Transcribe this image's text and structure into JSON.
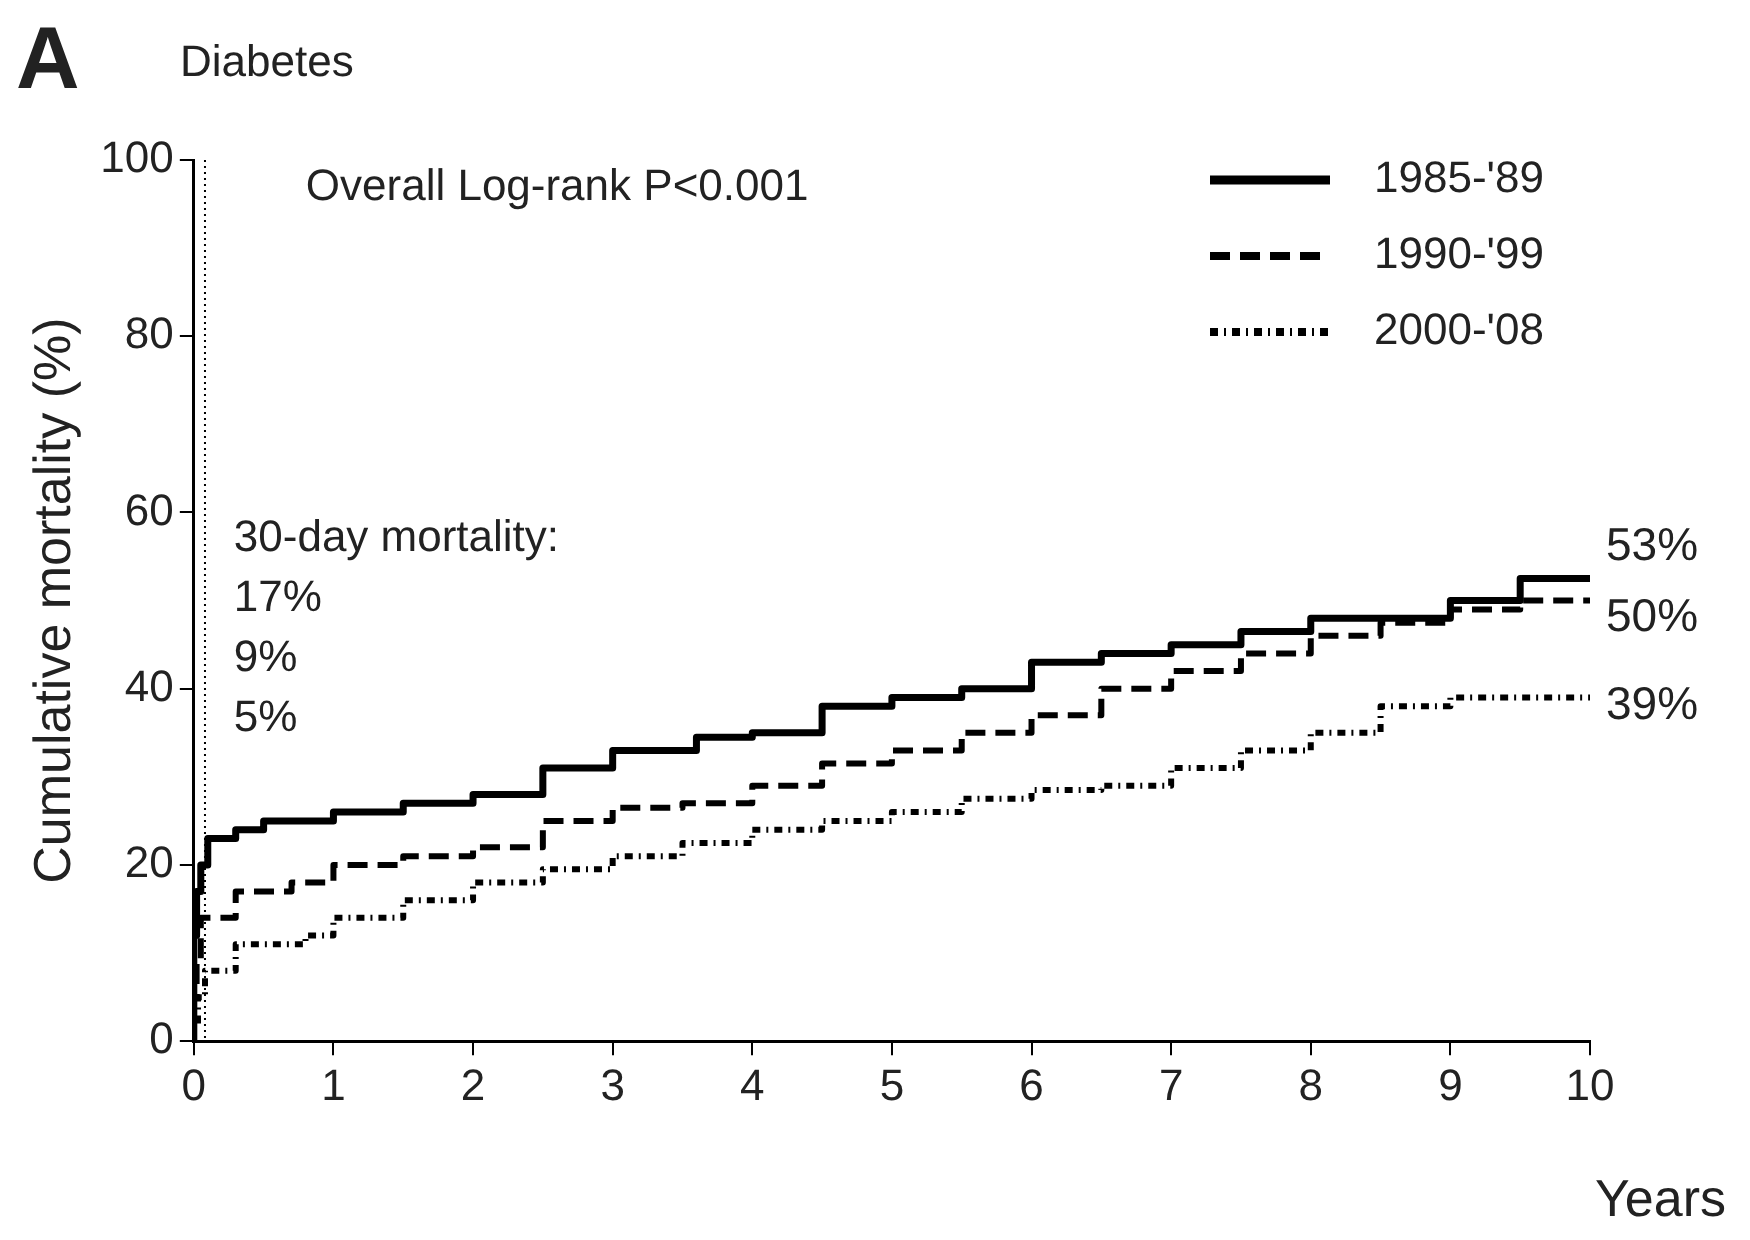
{
  "chart_data": {
    "type": "step",
    "title": "Diabetes",
    "ylabel": "Cumulative mortality (%)",
    "xlabel": "Years",
    "xlim": [
      0,
      10
    ],
    "xticks": [
      0,
      1,
      2,
      3,
      4,
      5,
      6,
      7,
      8,
      9,
      10
    ],
    "ylim": [
      0,
      100
    ],
    "yticks": [
      0,
      20,
      40,
      60,
      80,
      100
    ],
    "grid": false,
    "legend": "top right",
    "marker": "none",
    "ref_lines": [
      {
        "axis": "x",
        "value": 0.08,
        "line_style": "dotted",
        "color": "#000000"
      }
    ],
    "annotations": [
      "A",
      "Overall Log-rank P<0.001",
      "30-day mortality:\n17%\n9%\n5%",
      "53%",
      "50%",
      "39%"
    ],
    "series": [
      {
        "name": "1985-'89",
        "color": "#000000",
        "line_style": "solid",
        "x": [
          0,
          0.02,
          0.05,
          0.1,
          0.3,
          0.5,
          1,
          1.5,
          2,
          2.5,
          3,
          3.6,
          4,
          4.5,
          5,
          5.5,
          6,
          6.5,
          7,
          7.5,
          8,
          8.5,
          9,
          9.5,
          10
        ],
        "values": [
          0,
          12,
          17,
          20,
          23,
          24,
          25,
          26,
          27,
          28,
          31,
          33,
          34.5,
          35,
          38,
          39,
          40,
          43,
          44,
          45,
          46.5,
          48,
          48,
          50,
          52.5
        ]
      },
      {
        "name": "1990-'99",
        "color": "#000000",
        "line_style": "dashed",
        "x": [
          0,
          0.02,
          0.05,
          0.3,
          0.7,
          1,
          1.5,
          2,
          2.5,
          3,
          3.5,
          4,
          4.5,
          5,
          5.5,
          6,
          6.5,
          7,
          7.5,
          8,
          8.5,
          9,
          9.5,
          10
        ],
        "values": [
          0,
          5,
          9,
          14,
          17,
          18,
          20,
          21,
          22,
          25,
          26.5,
          27,
          29,
          31.5,
          33,
          35,
          37,
          40,
          42,
          44,
          46,
          47.5,
          49,
          50
        ]
      },
      {
        "name": "2000-'08",
        "color": "#000000",
        "line_style": "dotted",
        "x": [
          0,
          0.03,
          0.08,
          0.3,
          0.8,
          1,
          1.5,
          2,
          2.5,
          3,
          3.5,
          4,
          4.5,
          5,
          5.5,
          6,
          6.5,
          7,
          7.5,
          8,
          8.5,
          9,
          9.5,
          10
        ],
        "values": [
          0,
          2,
          5,
          8,
          11,
          12,
          14,
          16,
          18,
          19.5,
          21,
          22.5,
          24,
          25,
          26,
          27.5,
          28.5,
          29,
          31,
          33,
          35,
          38,
          39,
          39
        ]
      }
    ]
  }
}
